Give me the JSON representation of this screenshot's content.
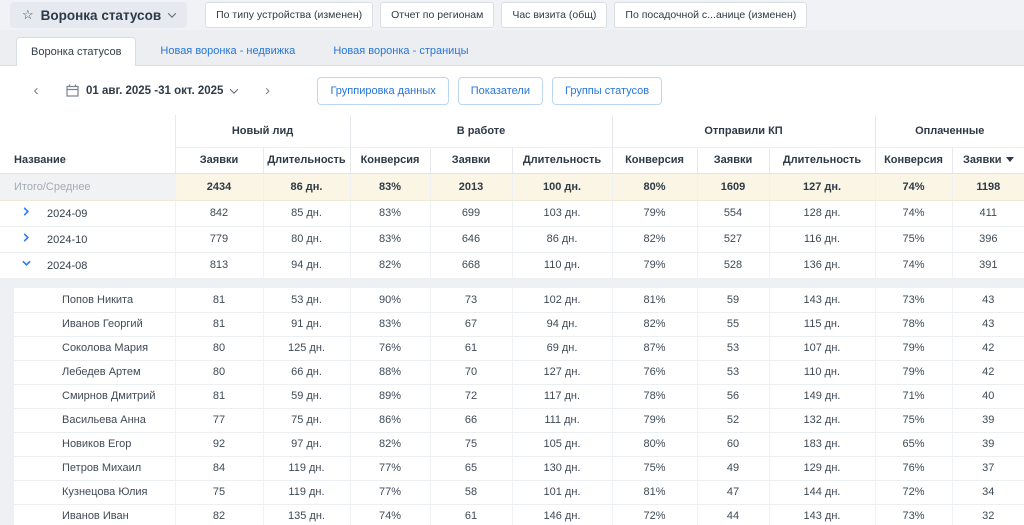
{
  "topbar": {
    "report_selector_label": "Воронка статусов",
    "report_tabs": [
      "По типу устройства (изменен)",
      "Отчет по регионам",
      "Час визита (общ)",
      "По посадочной с...анице (изменен)"
    ]
  },
  "funnel_tabs": [
    {
      "label": "Воронка статусов",
      "active": true
    },
    {
      "label": "Новая воронка - недвижка",
      "active": false
    },
    {
      "label": "Новая воронка - страницы",
      "active": false
    }
  ],
  "toolbar": {
    "date_range": "01 авг. 2025 -31 окт. 2025",
    "buttons": [
      "Группировка данных",
      "Показатели",
      "Группы статусов"
    ]
  },
  "table": {
    "groups": [
      {
        "label": "Новый лид",
        "span": 2
      },
      {
        "label": "В работе",
        "span": 3
      },
      {
        "label": "Отправили КП",
        "span": 3
      },
      {
        "label": "Оплаченные",
        "span": 2
      }
    ],
    "columns": [
      "Название",
      "Заявки",
      "Длительность",
      "Конверсия",
      "Заявки",
      "Длительность",
      "Конверсия",
      "Заявки",
      "Длительность",
      "Конверсия",
      "Заявки"
    ],
    "sorted_column": {
      "index": 10,
      "direction": "desc"
    },
    "summary_row": {
      "label": "Итого/Среднее",
      "values": [
        "2434",
        "86 дн.",
        "83%",
        "2013",
        "100 дн.",
        "80%",
        "1609",
        "127 дн.",
        "74%",
        "1198"
      ]
    },
    "month_rows": [
      {
        "label": "2024-09",
        "expanded": false,
        "values": [
          "842",
          "85 дн.",
          "83%",
          "699",
          "103 дн.",
          "79%",
          "554",
          "128 дн.",
          "74%",
          "411"
        ]
      },
      {
        "label": "2024-10",
        "expanded": false,
        "values": [
          "779",
          "80 дн.",
          "83%",
          "646",
          "86 дн.",
          "82%",
          "527",
          "116 дн.",
          "75%",
          "396"
        ]
      },
      {
        "label": "2024-08",
        "expanded": true,
        "values": [
          "813",
          "94 дн.",
          "82%",
          "668",
          "110 дн.",
          "79%",
          "528",
          "136 дн.",
          "74%",
          "391"
        ]
      }
    ],
    "child_rows": [
      {
        "label": "Попов Никита",
        "values": [
          "81",
          "53 дн.",
          "90%",
          "73",
          "102 дн.",
          "81%",
          "59",
          "143 дн.",
          "73%",
          "43"
        ]
      },
      {
        "label": "Иванов Георгий",
        "values": [
          "81",
          "91 дн.",
          "83%",
          "67",
          "94 дн.",
          "82%",
          "55",
          "115 дн.",
          "78%",
          "43"
        ]
      },
      {
        "label": "Соколова Мария",
        "values": [
          "80",
          "125 дн.",
          "76%",
          "61",
          "69 дн.",
          "87%",
          "53",
          "107 дн.",
          "79%",
          "42"
        ]
      },
      {
        "label": "Лебедев Артем",
        "values": [
          "80",
          "66 дн.",
          "88%",
          "70",
          "127 дн.",
          "76%",
          "53",
          "110 дн.",
          "79%",
          "42"
        ]
      },
      {
        "label": "Смирнов Дмитрий",
        "values": [
          "81",
          "59 дн.",
          "89%",
          "72",
          "117 дн.",
          "78%",
          "56",
          "149 дн.",
          "71%",
          "40"
        ]
      },
      {
        "label": "Васильева Анна",
        "values": [
          "77",
          "75 дн.",
          "86%",
          "66",
          "111 дн.",
          "79%",
          "52",
          "132 дн.",
          "75%",
          "39"
        ]
      },
      {
        "label": "Новиков Егор",
        "values": [
          "92",
          "97 дн.",
          "82%",
          "75",
          "105 дн.",
          "80%",
          "60",
          "183 дн.",
          "65%",
          "39"
        ]
      },
      {
        "label": "Петров Михаил",
        "values": [
          "84",
          "119 дн.",
          "77%",
          "65",
          "130 дн.",
          "75%",
          "49",
          "129 дн.",
          "76%",
          "37"
        ]
      },
      {
        "label": "Кузнецова Юлия",
        "values": [
          "75",
          "119 дн.",
          "77%",
          "58",
          "101 дн.",
          "81%",
          "47",
          "144 дн.",
          "72%",
          "34"
        ]
      },
      {
        "label": "Иванов Иван",
        "values": [
          "82",
          "135 дн.",
          "74%",
          "61",
          "146 дн.",
          "72%",
          "44",
          "143 дн.",
          "73%",
          "32"
        ]
      }
    ]
  },
  "colors": {
    "accent_blue": "#2676d9",
    "chevron_blue": "#2f80ed",
    "summary_row_bg": "#faf5e5",
    "topbar_bg": "#f0f2f5"
  }
}
